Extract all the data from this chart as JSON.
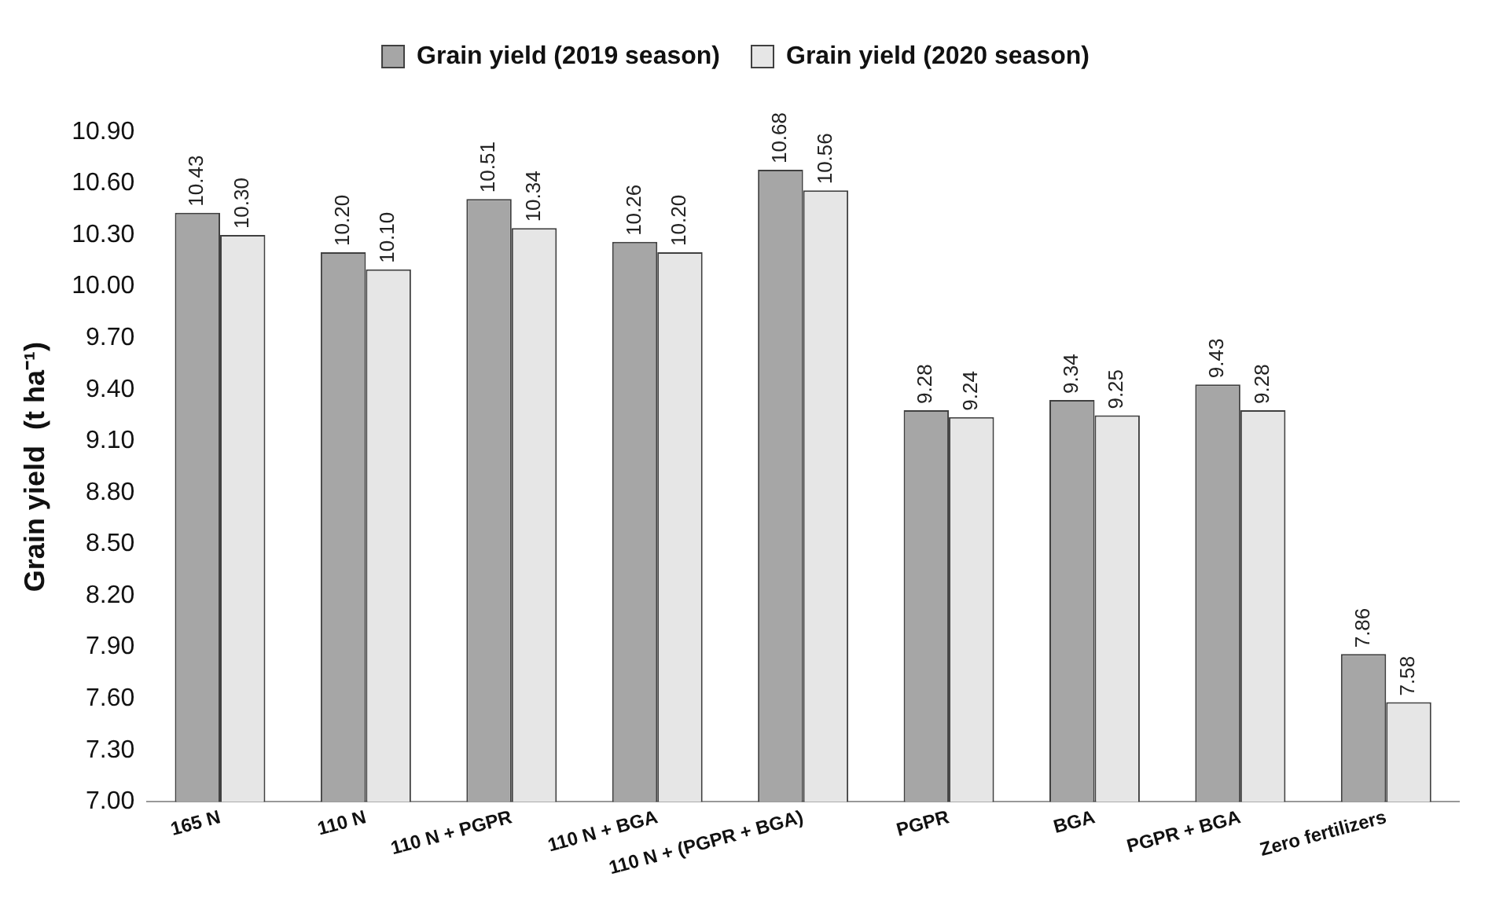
{
  "chart_data": {
    "type": "bar",
    "ylabel": "Grain yield  (t ha⁻¹)",
    "categories": [
      "165 N",
      "110 N",
      "110 N + PGPR",
      "110 N + BGA",
      "110 N + (PGPR + BGA)",
      "PGPR",
      "BGA",
      "PGPR + BGA",
      "Zero fertilizers"
    ],
    "series": [
      {
        "name": "Grain yield (2019 season)",
        "color": "#a6a6a6",
        "values": [
          10.43,
          10.2,
          10.51,
          10.26,
          10.68,
          9.28,
          9.34,
          9.43,
          7.86
        ],
        "value_labels": [
          "10.43",
          "10.20",
          "10.51",
          "10.26",
          "10.68",
          "9.28",
          "9.34",
          "9.43",
          "7.86"
        ]
      },
      {
        "name": "Grain yield (2020 season)",
        "color": "#e6e6e6",
        "values": [
          10.3,
          10.1,
          10.34,
          10.2,
          10.56,
          9.24,
          9.25,
          9.28,
          7.58
        ],
        "value_labels": [
          "10.30",
          "10.10",
          "10.34",
          "10.20",
          "10.56",
          "9.24",
          "9.25",
          "9.28",
          "7.58"
        ]
      }
    ],
    "ylim": [
      7,
      10.9
    ],
    "yticks": [
      {
        "value": 7,
        "label": "7.00"
      },
      {
        "value": 7.3,
        "label": "7.30"
      },
      {
        "value": 7.6,
        "label": "7.60"
      },
      {
        "value": 7.9,
        "label": "7.90"
      },
      {
        "value": 8.2,
        "label": "8.20"
      },
      {
        "value": 8.5,
        "label": "8.50"
      },
      {
        "value": 8.8,
        "label": "8.80"
      },
      {
        "value": 9.1,
        "label": "9.10"
      },
      {
        "value": 9.4,
        "label": "9.40"
      },
      {
        "value": 9.7,
        "label": "9.70"
      },
      {
        "value": 10,
        "label": "10.00"
      },
      {
        "value": 10.3,
        "label": "10.30"
      },
      {
        "value": 10.6,
        "label": "10.60"
      },
      {
        "value": 10.9,
        "label": "10.90"
      }
    ],
    "grid": false,
    "legend": "top"
  }
}
